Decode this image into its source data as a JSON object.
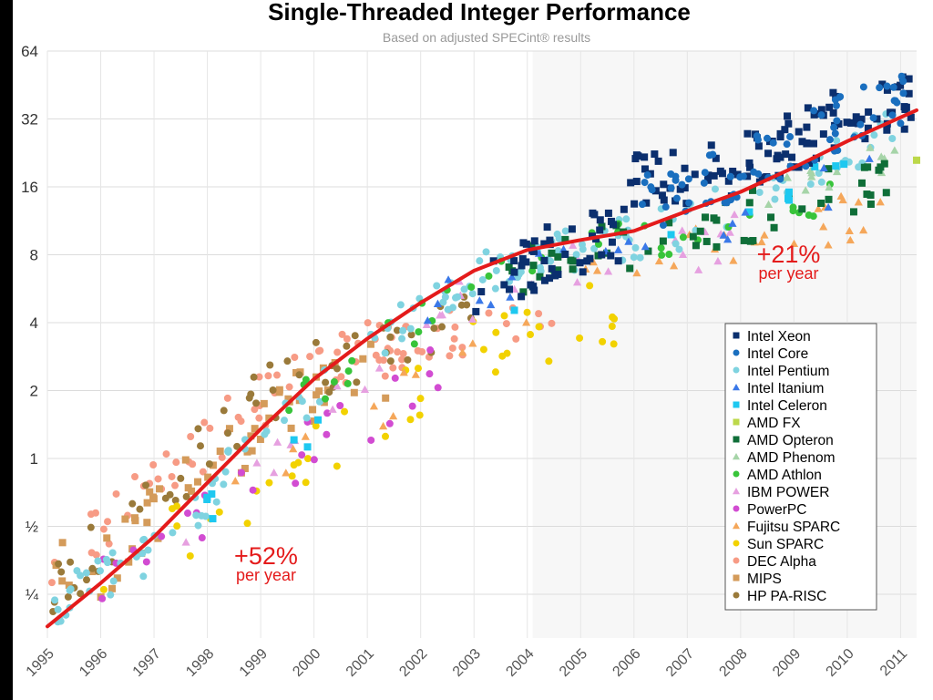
{
  "chart_data": {
    "type": "scatter",
    "title": "Single-Threaded Integer Performance",
    "subtitle": "Based on adjusted SPECint® results",
    "xlabel": "",
    "ylabel": "",
    "y_scale": "log2",
    "ylim": [
      0.16,
      64
    ],
    "xlim": [
      1995,
      2011.3
    ],
    "y_ticks": [
      {
        "value": 64,
        "label": "64"
      },
      {
        "value": 32,
        "label": "32"
      },
      {
        "value": 16,
        "label": "16"
      },
      {
        "value": 8,
        "label": "8"
      },
      {
        "value": 4,
        "label": "4"
      },
      {
        "value": 2,
        "label": "2"
      },
      {
        "value": 1,
        "label": "1"
      },
      {
        "value": 0.5,
        "label": "½"
      },
      {
        "value": 0.25,
        "label": "¼"
      }
    ],
    "x_ticks": [
      "1995",
      "1996",
      "1997",
      "1998",
      "1999",
      "2000",
      "2001",
      "2002",
      "2003",
      "2004",
      "2005",
      "2006",
      "2007",
      "2008",
      "2009",
      "2010",
      "2011"
    ],
    "grid": true,
    "legend_position": "right",
    "trend_line": {
      "color": "#e41b1b",
      "points": [
        [
          1995,
          0.18
        ],
        [
          1996,
          0.28
        ],
        [
          1997,
          0.45
        ],
        [
          1998,
          0.78
        ],
        [
          1999,
          1.35
        ],
        [
          2000,
          2.25
        ],
        [
          2001,
          3.4
        ],
        [
          2002,
          4.9
        ],
        [
          2003,
          6.8
        ],
        [
          2004,
          8.4
        ],
        [
          2005,
          9.3
        ],
        [
          2006,
          10.2
        ],
        [
          2007,
          12.5
        ],
        [
          2008,
          15.2
        ],
        [
          2009,
          19.5
        ],
        [
          2010,
          25.5
        ],
        [
          2011.3,
          35
        ]
      ]
    },
    "annotations": [
      {
        "text": "+52%",
        "subtext": "per year",
        "x": 1999.1,
        "y": 0.34
      },
      {
        "text": "+21%",
        "subtext": "per year",
        "x": 2008.9,
        "y": 7.4
      }
    ],
    "series": [
      {
        "name": "Intel Xeon",
        "color": "#0b2f6e",
        "marker": "square",
        "range": [
          2003.0,
          2011.2
        ],
        "yfit": [
          [
            2003,
            6.0
          ],
          [
            2005,
            8.8
          ],
          [
            2005.8,
            9.5
          ],
          [
            2006,
            17.0
          ],
          [
            2008,
            20.0
          ],
          [
            2010,
            33.0
          ],
          [
            2011.2,
            40.0
          ]
        ],
        "spread": 0.14,
        "count": 160
      },
      {
        "name": "Intel Core",
        "color": "#1a6fbf",
        "marker": "circle",
        "range": [
          2006.0,
          2011.2
        ],
        "yfit": [
          [
            2006,
            13.0
          ],
          [
            2008,
            19.0
          ],
          [
            2010,
            32.0
          ],
          [
            2011.2,
            40.0
          ]
        ],
        "spread": 0.13,
        "count": 70
      },
      {
        "name": "Intel Pentium",
        "color": "#7fd3e0",
        "marker": "circle",
        "range": [
          1995.0,
          2011.2
        ],
        "yfit": [
          [
            1995,
            0.22
          ],
          [
            1997,
            0.4
          ],
          [
            1999,
            1.2
          ],
          [
            2001,
            3.0
          ],
          [
            2002,
            4.6
          ],
          [
            2003,
            6.8
          ],
          [
            2005,
            8.5
          ],
          [
            2007,
            11.0
          ],
          [
            2009,
            18.0
          ],
          [
            2011.2,
            30.0
          ]
        ],
        "spread": 0.11,
        "count": 150
      },
      {
        "name": "Intel Itanium",
        "color": "#3a78e8",
        "marker": "triangle",
        "range": [
          2002.0,
          2011.0
        ],
        "yfit": [
          [
            2002,
            4.6
          ],
          [
            2004,
            6.8
          ],
          [
            2006,
            9.0
          ],
          [
            2008,
            12.0
          ],
          [
            2011,
            20.0
          ]
        ],
        "spread": 0.1,
        "count": 20
      },
      {
        "name": "Intel Celeron",
        "color": "#1ec8f0",
        "marker": "square",
        "range": [
          1997.5,
          2011.2
        ],
        "yfit": [
          [
            1997.5,
            0.5
          ],
          [
            1999,
            0.9
          ],
          [
            2001,
            2.2
          ],
          [
            2005,
            8.0
          ],
          [
            2009,
            16.0
          ],
          [
            2011.2,
            22.0
          ]
        ],
        "spread": 0.08,
        "count": 16
      },
      {
        "name": "AMD FX",
        "color": "#bcd84a",
        "marker": "square",
        "range": [
          2011.3,
          2011.3
        ],
        "yfit": [
          [
            2011.3,
            21.0
          ]
        ],
        "spread": 0.0,
        "count": 1
      },
      {
        "name": "AMD Opteron",
        "color": "#0f6e38",
        "marker": "square",
        "range": [
          2003.5,
          2011.0
        ],
        "yfit": [
          [
            2003.5,
            6.5
          ],
          [
            2005,
            8.0
          ],
          [
            2007,
            10.0
          ],
          [
            2008,
            11.5
          ],
          [
            2009,
            14.0
          ],
          [
            2011,
            18.0
          ]
        ],
        "spread": 0.12,
        "count": 55
      },
      {
        "name": "AMD Phenom",
        "color": "#a6d4a8",
        "marker": "triangle",
        "range": [
          2008.0,
          2011.0
        ],
        "yfit": [
          [
            2008,
            14.0
          ],
          [
            2009.5,
            18.0
          ],
          [
            2011,
            23.0
          ]
        ],
        "spread": 0.08,
        "count": 15
      },
      {
        "name": "AMD Athlon",
        "color": "#38c43a",
        "marker": "circle",
        "range": [
          1999.5,
          2010.0
        ],
        "yfit": [
          [
            1999.5,
            1.6
          ],
          [
            2001,
            3.0
          ],
          [
            2003,
            5.8
          ],
          [
            2005,
            8.4
          ],
          [
            2007,
            10.0
          ],
          [
            2010,
            14.0
          ]
        ],
        "spread": 0.1,
        "count": 38
      },
      {
        "name": "IBM POWER",
        "color": "#e6a0e0",
        "marker": "triangle",
        "range": [
          1997.5,
          2008.0
        ],
        "yfit": [
          [
            1997.5,
            0.45
          ],
          [
            1999,
            0.9
          ],
          [
            2000,
            1.6
          ],
          [
            2002,
            4.0
          ],
          [
            2004,
            6.2
          ],
          [
            2006,
            8.0
          ],
          [
            2008,
            9.5
          ]
        ],
        "spread": 0.12,
        "count": 35
      },
      {
        "name": "PowerPC",
        "color": "#d24cd2",
        "marker": "circle",
        "range": [
          1995.5,
          2003.0
        ],
        "yfit": [
          [
            1995.5,
            0.28
          ],
          [
            1997,
            0.34
          ],
          [
            1999,
            0.8
          ],
          [
            2000,
            1.2
          ],
          [
            2003,
            2.8
          ]
        ],
        "spread": 0.14,
        "count": 26
      },
      {
        "name": "Fujitsu SPARC",
        "color": "#f5a75a",
        "marker": "triangle",
        "range": [
          1998.5,
          2011.0
        ],
        "yfit": [
          [
            1998.5,
            0.8
          ],
          [
            2001,
            1.6
          ],
          [
            2003,
            3.4
          ],
          [
            2005,
            5.5
          ],
          [
            2007,
            8.5
          ],
          [
            2009,
            11.0
          ],
          [
            2011,
            12.5
          ]
        ],
        "spread": 0.12,
        "count": 38
      },
      {
        "name": "Sun SPARC",
        "color": "#f2d200",
        "marker": "circle",
        "range": [
          1996.0,
          2006.0
        ],
        "yfit": [
          [
            1996,
            0.28
          ],
          [
            1997.5,
            0.5
          ],
          [
            1999,
            0.75
          ],
          [
            2001,
            1.6
          ],
          [
            2003,
            3.0
          ],
          [
            2005,
            4.2
          ],
          [
            2006,
            4.2
          ]
        ],
        "spread": 0.16,
        "count": 42
      },
      {
        "name": "DEC Alpha",
        "color": "#f79b85",
        "marker": "circle",
        "range": [
          1995.0,
          2004.5
        ],
        "yfit": [
          [
            1995,
            0.3
          ],
          [
            1996,
            0.48
          ],
          [
            1997,
            0.8
          ],
          [
            1998,
            1.2
          ],
          [
            1999,
            1.8
          ],
          [
            2000,
            2.4
          ],
          [
            2001,
            3.0
          ],
          [
            2004.5,
            4.0
          ]
        ],
        "spread": 0.13,
        "count": 90
      },
      {
        "name": "MIPS",
        "color": "#d49b5a",
        "marker": "square",
        "range": [
          1995.0,
          2001.5
        ],
        "yfit": [
          [
            1995,
            0.3
          ],
          [
            1996,
            0.32
          ],
          [
            1997,
            0.55
          ],
          [
            1998,
            0.9
          ],
          [
            1999,
            1.3
          ],
          [
            2000,
            2.0
          ],
          [
            2001.5,
            2.6
          ]
        ],
        "spread": 0.15,
        "count": 60
      },
      {
        "name": "HP PA-RISC",
        "color": "#9a7a3a",
        "marker": "circle",
        "range": [
          1995.0,
          2003.0
        ],
        "yfit": [
          [
            1995,
            0.25
          ],
          [
            1996,
            0.4
          ],
          [
            1997,
            0.7
          ],
          [
            1998,
            1.1
          ],
          [
            1999,
            1.9
          ],
          [
            2000,
            2.4
          ],
          [
            2001,
            3.0
          ],
          [
            2003,
            4.5
          ]
        ],
        "spread": 0.14,
        "count": 60
      }
    ]
  },
  "legend": {
    "items": [
      {
        "label": "Intel Xeon",
        "color": "#0b2f6e",
        "marker": "square"
      },
      {
        "label": "Intel Core",
        "color": "#1a6fbf",
        "marker": "circle"
      },
      {
        "label": "Intel Pentium",
        "color": "#7fd3e0",
        "marker": "circle"
      },
      {
        "label": "Intel Itanium",
        "color": "#3a78e8",
        "marker": "triangle"
      },
      {
        "label": "Intel Celeron",
        "color": "#1ec8f0",
        "marker": "square"
      },
      {
        "label": "AMD FX",
        "color": "#bcd84a",
        "marker": "square"
      },
      {
        "label": "AMD Opteron",
        "color": "#0f6e38",
        "marker": "square"
      },
      {
        "label": "AMD Phenom",
        "color": "#a6d4a8",
        "marker": "triangle"
      },
      {
        "label": "AMD Athlon",
        "color": "#38c43a",
        "marker": "circle"
      },
      {
        "label": "IBM POWER",
        "color": "#e6a0e0",
        "marker": "triangle"
      },
      {
        "label": "PowerPC",
        "color": "#d24cd2",
        "marker": "circle"
      },
      {
        "label": "Fujitsu SPARC",
        "color": "#f5a75a",
        "marker": "triangle"
      },
      {
        "label": "Sun SPARC",
        "color": "#f2d200",
        "marker": "circle"
      },
      {
        "label": "DEC Alpha",
        "color": "#f79b85",
        "marker": "circle"
      },
      {
        "label": "MIPS",
        "color": "#d49b5a",
        "marker": "square"
      },
      {
        "label": "HP PA-RISC",
        "color": "#9a7a3a",
        "marker": "circle"
      }
    ]
  }
}
